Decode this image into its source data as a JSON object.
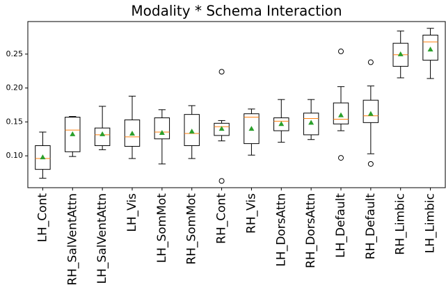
{
  "chart_data": {
    "type": "box",
    "title": "Modality * Schema Interaction",
    "categories": [
      "LH_Cont",
      "RH_SalVentAttn",
      "LH_SalVentAttn",
      "LH_Vis",
      "LH_SomMot",
      "RH_SomMot",
      "RH_Cont",
      "RH_Vis",
      "LH_DorsAttn",
      "RH_DorsAttn",
      "LH_Default",
      "RH_Default",
      "RH_Limbic",
      "LH_Limbic"
    ],
    "boxes": [
      {
        "whislo": 0.067,
        "q1": 0.08,
        "med": 0.096,
        "q3": 0.115,
        "whishi": 0.135,
        "mean": 0.098,
        "fliers": []
      },
      {
        "whislo": 0.099,
        "q1": 0.106,
        "med": 0.138,
        "q3": 0.157,
        "whishi": 0.158,
        "mean": 0.132,
        "fliers": []
      },
      {
        "whislo": 0.109,
        "q1": 0.115,
        "med": 0.131,
        "q3": 0.141,
        "whishi": 0.173,
        "mean": 0.132,
        "fliers": []
      },
      {
        "whislo": 0.096,
        "q1": 0.114,
        "med": 0.128,
        "q3": 0.153,
        "whishi": 0.188,
        "mean": 0.133,
        "fliers": []
      },
      {
        "whislo": 0.088,
        "q1": 0.125,
        "med": 0.135,
        "q3": 0.156,
        "whishi": 0.168,
        "mean": 0.134,
        "fliers": []
      },
      {
        "whislo": 0.096,
        "q1": 0.115,
        "med": 0.133,
        "q3": 0.161,
        "whishi": 0.174,
        "mean": 0.136,
        "fliers": []
      },
      {
        "whislo": 0.122,
        "q1": 0.13,
        "med": 0.143,
        "q3": 0.148,
        "whishi": 0.152,
        "mean": 0.14,
        "fliers": [
          0.224,
          0.063
        ]
      },
      {
        "whislo": 0.101,
        "q1": 0.118,
        "med": 0.157,
        "q3": 0.162,
        "whishi": 0.169,
        "mean": 0.14,
        "fliers": []
      },
      {
        "whislo": 0.12,
        "q1": 0.137,
        "med": 0.151,
        "q3": 0.156,
        "whishi": 0.183,
        "mean": 0.147,
        "fliers": []
      },
      {
        "whislo": 0.124,
        "q1": 0.131,
        "med": 0.155,
        "q3": 0.163,
        "whishi": 0.183,
        "mean": 0.149,
        "fliers": []
      },
      {
        "whislo": 0.137,
        "q1": 0.147,
        "med": 0.154,
        "q3": 0.178,
        "whishi": 0.202,
        "mean": 0.16,
        "fliers": [
          0.254,
          0.097
        ]
      },
      {
        "whislo": 0.103,
        "q1": 0.149,
        "med": 0.159,
        "q3": 0.182,
        "whishi": 0.203,
        "mean": 0.162,
        "fliers": [
          0.238,
          0.088
        ]
      },
      {
        "whislo": 0.215,
        "q1": 0.232,
        "med": 0.249,
        "q3": 0.266,
        "whishi": 0.284,
        "mean": 0.25,
        "fliers": []
      },
      {
        "whislo": 0.214,
        "q1": 0.241,
        "med": 0.268,
        "q3": 0.278,
        "whishi": 0.288,
        "mean": 0.257,
        "fliers": []
      }
    ],
    "box_color": "#000000",
    "median_color": "#ff7f0e",
    "mean_color": "#2ca02c",
    "ylim": [
      0.053,
      0.298
    ],
    "yticks": [
      {
        "value": 0.1,
        "label": "0.10"
      },
      {
        "value": 0.15,
        "label": "0.15"
      },
      {
        "value": 0.2,
        "label": "0.20"
      },
      {
        "value": 0.25,
        "label": "0.25"
      }
    ],
    "grid": false
  }
}
